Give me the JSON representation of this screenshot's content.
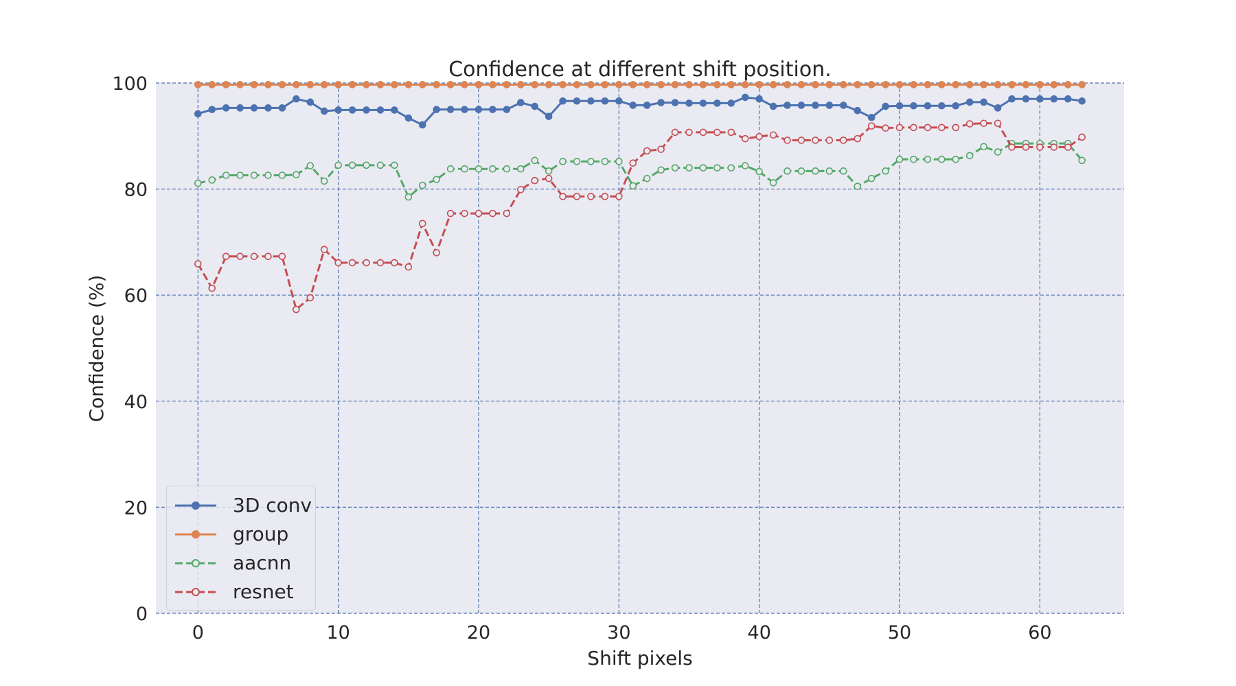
{
  "chart_data": {
    "type": "line",
    "title": "Confidence at different shift position.",
    "xlabel": "Shift pixels",
    "ylabel": "Confidence (%)",
    "xlim": [
      -3,
      66
    ],
    "ylim": [
      0,
      100
    ],
    "xticks": [
      0,
      10,
      20,
      30,
      40,
      50,
      60
    ],
    "yticks": [
      0,
      20,
      40,
      60,
      80,
      100
    ],
    "grid": true,
    "legend_position": "lower-left",
    "x": [
      0,
      1,
      2,
      3,
      4,
      5,
      6,
      7,
      8,
      9,
      10,
      11,
      12,
      13,
      14,
      15,
      16,
      17,
      18,
      19,
      20,
      21,
      22,
      23,
      24,
      25,
      26,
      27,
      28,
      29,
      30,
      31,
      32,
      33,
      34,
      35,
      36,
      37,
      38,
      39,
      40,
      41,
      42,
      43,
      44,
      45,
      46,
      47,
      48,
      49,
      50,
      51,
      52,
      53,
      54,
      55,
      56,
      57,
      58,
      59,
      60,
      61,
      62,
      63
    ],
    "series": [
      {
        "name": "3D conv",
        "color": "#4c72b0",
        "line_style": "solid",
        "marker": "filled-circle",
        "values": [
          94.2,
          95.0,
          95.3,
          95.3,
          95.3,
          95.3,
          95.3,
          97.0,
          96.4,
          94.7,
          94.9,
          94.9,
          94.9,
          94.9,
          94.9,
          93.4,
          92.1,
          95.0,
          95.0,
          95.0,
          95.0,
          95.0,
          95.0,
          96.3,
          95.6,
          93.7,
          96.6,
          96.6,
          96.6,
          96.6,
          96.6,
          95.8,
          95.8,
          96.3,
          96.3,
          96.2,
          96.2,
          96.2,
          96.2,
          97.3,
          97.0,
          95.6,
          95.8,
          95.8,
          95.8,
          95.8,
          95.8,
          94.8,
          93.5,
          95.6,
          95.7,
          95.7,
          95.7,
          95.7,
          95.7,
          96.4,
          96.4,
          95.3,
          97.0,
          97.0,
          97.0,
          97.0,
          97.0,
          96.6
        ]
      },
      {
        "name": "group",
        "color": "#dd8452",
        "line_style": "solid",
        "marker": "filled-circle",
        "values": [
          99.7,
          99.7,
          99.7,
          99.7,
          99.7,
          99.7,
          99.7,
          99.7,
          99.7,
          99.7,
          99.7,
          99.7,
          99.7,
          99.7,
          99.7,
          99.7,
          99.7,
          99.7,
          99.7,
          99.7,
          99.7,
          99.7,
          99.7,
          99.7,
          99.7,
          99.7,
          99.7,
          99.7,
          99.7,
          99.7,
          99.7,
          99.7,
          99.7,
          99.7,
          99.7,
          99.7,
          99.7,
          99.7,
          99.7,
          99.7,
          99.7,
          99.7,
          99.7,
          99.7,
          99.7,
          99.7,
          99.7,
          99.7,
          99.7,
          99.7,
          99.7,
          99.7,
          99.7,
          99.7,
          99.7,
          99.7,
          99.7,
          99.7,
          99.7,
          99.7,
          99.7,
          99.7,
          99.7,
          99.7
        ]
      },
      {
        "name": "aacnn",
        "color": "#55a868",
        "line_style": "dashed",
        "marker": "open-circle",
        "values": [
          81.1,
          81.7,
          82.6,
          82.6,
          82.6,
          82.6,
          82.6,
          82.7,
          84.4,
          81.5,
          84.5,
          84.5,
          84.5,
          84.5,
          84.5,
          78.5,
          80.7,
          81.8,
          83.8,
          83.8,
          83.8,
          83.8,
          83.8,
          83.8,
          85.4,
          83.4,
          85.2,
          85.2,
          85.2,
          85.2,
          85.2,
          80.6,
          82.0,
          83.6,
          84.0,
          84.0,
          84.0,
          84.0,
          84.0,
          84.4,
          83.3,
          81.2,
          83.4,
          83.4,
          83.4,
          83.4,
          83.4,
          80.5,
          82.0,
          83.4,
          85.6,
          85.6,
          85.6,
          85.6,
          85.6,
          86.3,
          88.0,
          87.0,
          88.6,
          88.6,
          88.6,
          88.6,
          88.6,
          85.4
        ]
      },
      {
        "name": "resnet",
        "color": "#c44e52",
        "line_style": "dashed",
        "marker": "open-circle",
        "values": [
          65.9,
          61.3,
          67.3,
          67.3,
          67.3,
          67.3,
          67.3,
          57.3,
          59.5,
          68.6,
          66.1,
          66.1,
          66.1,
          66.1,
          66.1,
          65.3,
          73.5,
          68.0,
          75.4,
          75.4,
          75.4,
          75.4,
          75.4,
          79.9,
          81.6,
          82.0,
          78.6,
          78.6,
          78.6,
          78.6,
          78.6,
          84.9,
          87.2,
          87.5,
          90.7,
          90.7,
          90.7,
          90.7,
          90.7,
          89.5,
          89.9,
          90.2,
          89.2,
          89.2,
          89.2,
          89.2,
          89.2,
          89.5,
          91.9,
          91.5,
          91.6,
          91.6,
          91.6,
          91.6,
          91.6,
          92.3,
          92.4,
          92.4,
          87.9,
          87.9,
          87.9,
          87.9,
          87.9,
          89.8
        ]
      }
    ]
  }
}
